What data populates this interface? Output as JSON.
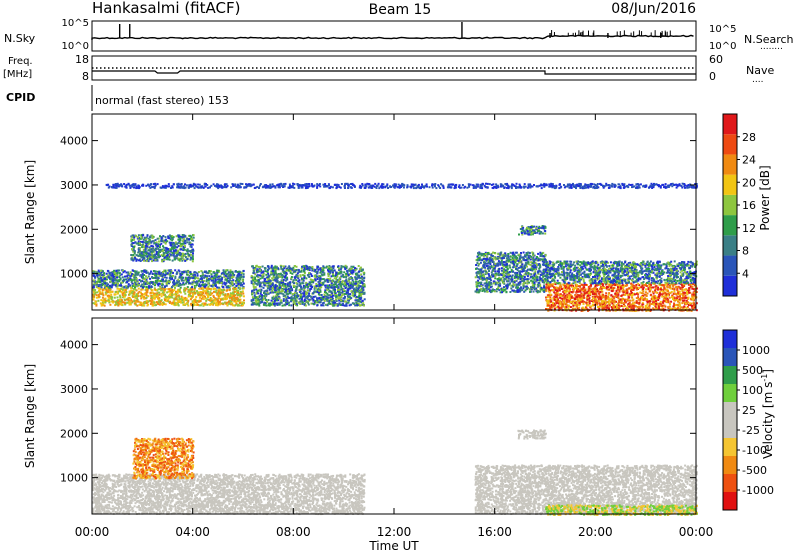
{
  "header": {
    "station": "Hankasalmi (fitACF)",
    "beam": "Beam 15",
    "date": "08/Jun/2016"
  },
  "noise_panel": {
    "left_label": "N.Sky",
    "right_label": "N.Search",
    "right_dots": "........",
    "left_ticks": [
      "10^5",
      "10^0"
    ],
    "right_ticks": [
      "10^5",
      "10^0"
    ]
  },
  "freq_panel": {
    "left_label_1": "Freq.",
    "left_label_2": "[MHz]",
    "right_label": "Nave",
    "right_dots": "....",
    "left_ticks": [
      "18",
      "8"
    ],
    "right_ticks": [
      "60",
      "0"
    ]
  },
  "cpid": {
    "label": "CPID",
    "text": "normal (fast stereo) 153"
  },
  "xaxis": {
    "label": "Time UT",
    "ticks": [
      "00:00",
      "04:00",
      "08:00",
      "12:00",
      "16:00",
      "20:00",
      "00:00"
    ]
  },
  "colors": {
    "power_scale": [
      "#1f2fd8",
      "#2a55b8",
      "#3a7f86",
      "#2f9d4a",
      "#8ec63f",
      "#f2c514",
      "#f08a12",
      "#ee4a12",
      "#e0181a"
    ],
    "velocity_scale": [
      "#e01010",
      "#ee5010",
      "#f08a12",
      "#f5c531",
      "#c8c6bf",
      "#c8c6bf",
      "#6fcf3c",
      "#2f9d4a",
      "#2a55b8",
      "#1f2fd8"
    ]
  },
  "chart_data": [
    {
      "type": "heatmap",
      "title": "",
      "xlabel": "Time UT",
      "ylabel": "Slant Range [km]",
      "xlim": [
        "00:00",
        "24:00"
      ],
      "ylim": [
        180,
        4600
      ],
      "yticks": [
        "1000",
        "2000",
        "3000",
        "4000"
      ],
      "colorbar": {
        "label": "Power [dB]",
        "range": [
          0,
          32
        ],
        "ticks": [
          "4",
          "8",
          "12",
          "16",
          "20",
          "24",
          "28"
        ]
      },
      "echo_regions": [
        {
          "t0": 0.0,
          "t1": 6.0,
          "r0": 300,
          "r1": 1100,
          "level": "12-24 dB"
        },
        {
          "t0": 1.5,
          "t1": 4.0,
          "r0": 1300,
          "r1": 1900,
          "level": "8-16 dB"
        },
        {
          "t0": 6.3,
          "t1": 10.8,
          "r0": 300,
          "r1": 1200,
          "level": "8-24 dB"
        },
        {
          "t0": 15.2,
          "t1": 18.0,
          "r0": 600,
          "r1": 1500,
          "level": "8-16 dB"
        },
        {
          "t0": 16.9,
          "t1": 18.0,
          "r0": 1900,
          "r1": 2100,
          "level": "8-12 dB"
        },
        {
          "t0": 18.0,
          "t1": 24.0,
          "r0": 180,
          "r1": 800,
          "level": "20-30 dB"
        },
        {
          "t0": 18.0,
          "t1": 24.0,
          "r0": 800,
          "r1": 1300,
          "level": "4-12 dB"
        },
        {
          "t0": 0.5,
          "t1": 24.0,
          "r0": 2950,
          "r1": 3050,
          "level": "4-8 dB"
        }
      ]
    },
    {
      "type": "heatmap",
      "title": "",
      "xlabel": "Time UT",
      "ylabel": "Slant Range [km]",
      "xlim": [
        "00:00",
        "24:00"
      ],
      "ylim": [
        180,
        4600
      ],
      "yticks": [
        "1000",
        "2000",
        "3000",
        "4000"
      ],
      "colorbar": {
        "label": "Velocity [m s",
        "label_sup": "-1",
        "label_end": "]",
        "ticks": [
          "1000",
          "500",
          "100",
          "25",
          "-25",
          "-100",
          "-500",
          "-1000"
        ]
      },
      "echo_regions": [
        {
          "t0": 0.0,
          "t1": 10.8,
          "r0": 200,
          "r1": 1100,
          "level": "-25 to 25 m/s"
        },
        {
          "t0": 1.6,
          "t1": 4.0,
          "r0": 1000,
          "r1": 1900,
          "level": "-100 to -500 m/s"
        },
        {
          "t0": 15.2,
          "t1": 24.0,
          "r0": 200,
          "r1": 1300,
          "level": "-25 to 25 m/s"
        },
        {
          "t0": 16.9,
          "t1": 18.0,
          "r0": 1900,
          "r1": 2100,
          "level": "-25 to 25 m/s"
        },
        {
          "t0": 18.0,
          "t1": 24.0,
          "r0": 180,
          "r1": 400,
          "level": "25 to 100 m/s"
        }
      ]
    }
  ]
}
